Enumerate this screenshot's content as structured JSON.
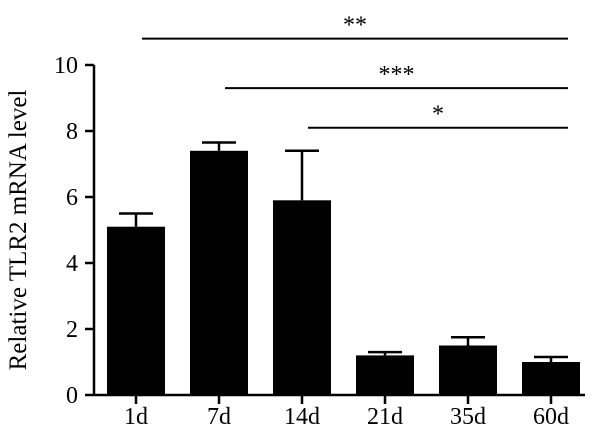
{
  "chart_data": {
    "type": "bar",
    "categories": [
      "1d",
      "7d",
      "14d",
      "21d",
      "35d",
      "60d"
    ],
    "values": [
      5.1,
      7.4,
      5.9,
      1.2,
      1.5,
      1.0
    ],
    "error_upper": [
      5.5,
      7.65,
      7.4,
      1.3,
      1.75,
      1.15
    ],
    "xlabel": "",
    "ylabel": "Relative TLR2 mRNA level",
    "ylim": [
      0,
      10
    ],
    "yticks": [
      0,
      2,
      4,
      6,
      8,
      10
    ],
    "grid": false,
    "legend": "none",
    "bar_color": "#000000",
    "significance": [
      {
        "from": "1d",
        "to": "60d",
        "label": "**",
        "y": 10.8
      },
      {
        "from": "7d",
        "to": "60d",
        "label": "***",
        "y": 9.3
      },
      {
        "from": "14d",
        "to": "60d",
        "label": "*",
        "y": 8.1
      }
    ]
  }
}
